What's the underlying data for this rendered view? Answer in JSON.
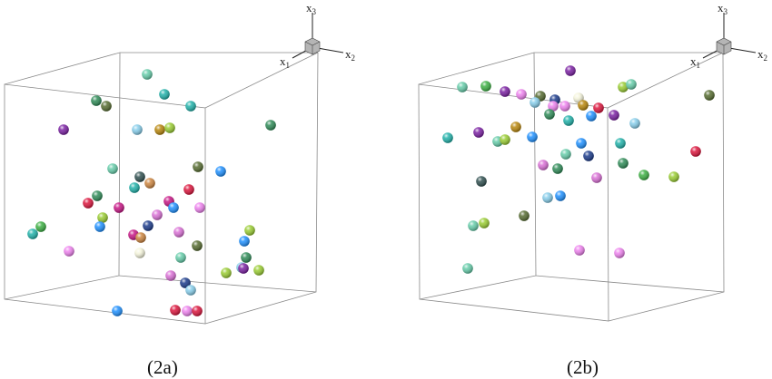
{
  "captions": {
    "a": "(2a)",
    "b": "(2b)"
  },
  "axes": {
    "x1": "x",
    "x1_sub": "1",
    "x2": "x",
    "x2_sub": "2",
    "x3": "x",
    "x3_sub": "3"
  },
  "palette": [
    "#3cb043",
    "#7a1fa2",
    "#2e8b57",
    "#6b8e23",
    "#1e90ff",
    "#c71585",
    "#20b2aa",
    "#556b2f",
    "#b8860b",
    "#9acd32",
    "#da70d6",
    "#dc143c",
    "#1a3a8a",
    "#87ceeb",
    "#f5f5dc",
    "#2f4f4f",
    "#cd853f",
    "#66cdaa",
    "#ee82ee"
  ],
  "panels": [
    {
      "id": "a",
      "particle_count": 48
    },
    {
      "id": "b",
      "particle_count": 44
    }
  ]
}
